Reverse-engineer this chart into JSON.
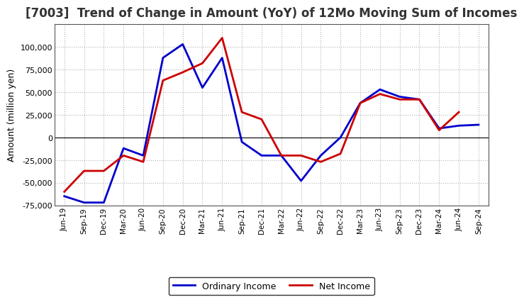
{
  "title": "[7003]  Trend of Change in Amount (YoY) of 12Mo Moving Sum of Incomes",
  "ylabel": "Amount (million yen)",
  "background_color": "#ffffff",
  "plot_bg_color": "#ffffff",
  "grid_color": "#aaaaaa",
  "x_labels": [
    "Jun-19",
    "Sep-19",
    "Dec-19",
    "Mar-20",
    "Jun-20",
    "Sep-20",
    "Dec-20",
    "Mar-21",
    "Jun-21",
    "Sep-21",
    "Dec-21",
    "Mar-22",
    "Jun-22",
    "Sep-22",
    "Dec-22",
    "Mar-23",
    "Jun-23",
    "Sep-23",
    "Dec-23",
    "Mar-24",
    "Jun-24",
    "Sep-24"
  ],
  "ordinary_income": [
    -65000,
    -72000,
    -72000,
    -12000,
    -20000,
    88000,
    103000,
    55000,
    88000,
    -5000,
    -20000,
    -20000,
    -48000,
    -20000,
    0,
    38000,
    53000,
    45000,
    42000,
    10000,
    13000,
    14000
  ],
  "net_income": [
    -60000,
    -37000,
    -37000,
    -20000,
    -27000,
    63000,
    72000,
    82000,
    110000,
    28000,
    20000,
    -20000,
    -20000,
    -27000,
    -18000,
    38000,
    48000,
    42000,
    42000,
    8000,
    28000,
    null
  ],
  "ordinary_color": "#0000cc",
  "net_color": "#cc0000",
  "ylim": [
    -75000,
    125000
  ],
  "yticks": [
    -75000,
    -50000,
    -25000,
    0,
    25000,
    50000,
    75000,
    100000
  ],
  "legend_labels": [
    "Ordinary Income",
    "Net Income"
  ],
  "line_width": 2.0,
  "title_fontsize": 12,
  "title_color": "#333333"
}
